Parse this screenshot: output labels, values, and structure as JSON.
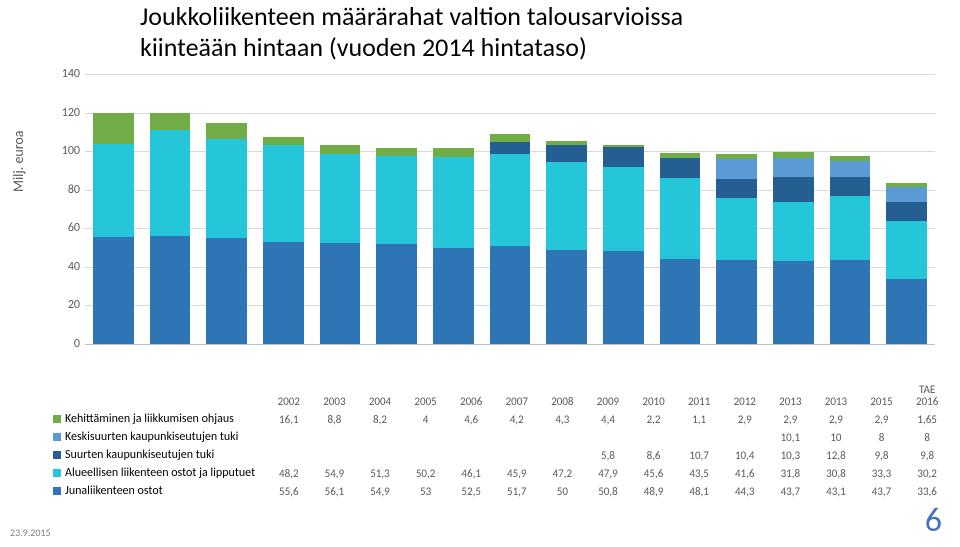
{
  "title_line1": "Joukkoliikenteen määrärahat valtion talousarvioissa",
  "title_line2": "kiinteään hintaan (vuoden 2014 hintataso)",
  "ylabel": "Milj. euroa",
  "page_number": "6",
  "footer_date": "23.9.2015",
  "chart": {
    "ylim_max": 140,
    "ytick_step": 20,
    "bg_color": "#ffffff",
    "grid_color": "#d9d9d9",
    "categories": [
      "2002",
      "2003",
      "2004",
      "2005",
      "2006",
      "2007",
      "2008",
      "2009",
      "2010",
      "2011",
      "2012",
      "2013",
      "2013",
      "2015",
      "TAE\n2016"
    ],
    "series": [
      {
        "name": "Kehittäminen ja liikkumisen ohjaus",
        "color": "#70ad47",
        "values": [
          16.1,
          8.8,
          8.2,
          4.0,
          4.6,
          4.2,
          4.3,
          4.4,
          2.2,
          1.1,
          2.9,
          2.9,
          2.9,
          2.9,
          1.65
        ]
      },
      {
        "name": "Keskisuurten kaupunkiseutujen tuki",
        "color": "#5b9bd5",
        "values": [
          null,
          null,
          null,
          null,
          null,
          null,
          null,
          null,
          null,
          null,
          null,
          10.1,
          10.0,
          8.0,
          8.0
        ]
      },
      {
        "name": "Suurten kaupunkiseutujen tuki",
        "color": "#255e91",
        "values": [
          null,
          null,
          null,
          null,
          null,
          null,
          null,
          5.8,
          8.6,
          10.7,
          10.4,
          10.3,
          12.8,
          9.8,
          9.8
        ]
      },
      {
        "name": "Alueellisen liikenteen ostot ja lipputuet",
        "color": "#26c6da",
        "values": [
          48.2,
          54.9,
          51.3,
          50.2,
          46.1,
          45.9,
          47.2,
          47.9,
          45.6,
          43.5,
          41.6,
          31.8,
          30.8,
          33.3,
          30.2
        ]
      },
      {
        "name": "Junaliikenteen ostot",
        "color": "#2e75b6",
        "values": [
          55.6,
          56.1,
          54.9,
          53.0,
          52.5,
          51.7,
          50.0,
          50.8,
          48.9,
          48.1,
          44.3,
          43.7,
          43.1,
          43.7,
          33.6
        ]
      }
    ]
  },
  "table_headers": [
    "2002",
    "2003",
    "2004",
    "2005",
    "2006",
    "2007",
    "2008",
    "2009",
    "2010",
    "2011",
    "2012",
    "2013",
    "2013",
    "2015",
    "TAE 2016"
  ]
}
